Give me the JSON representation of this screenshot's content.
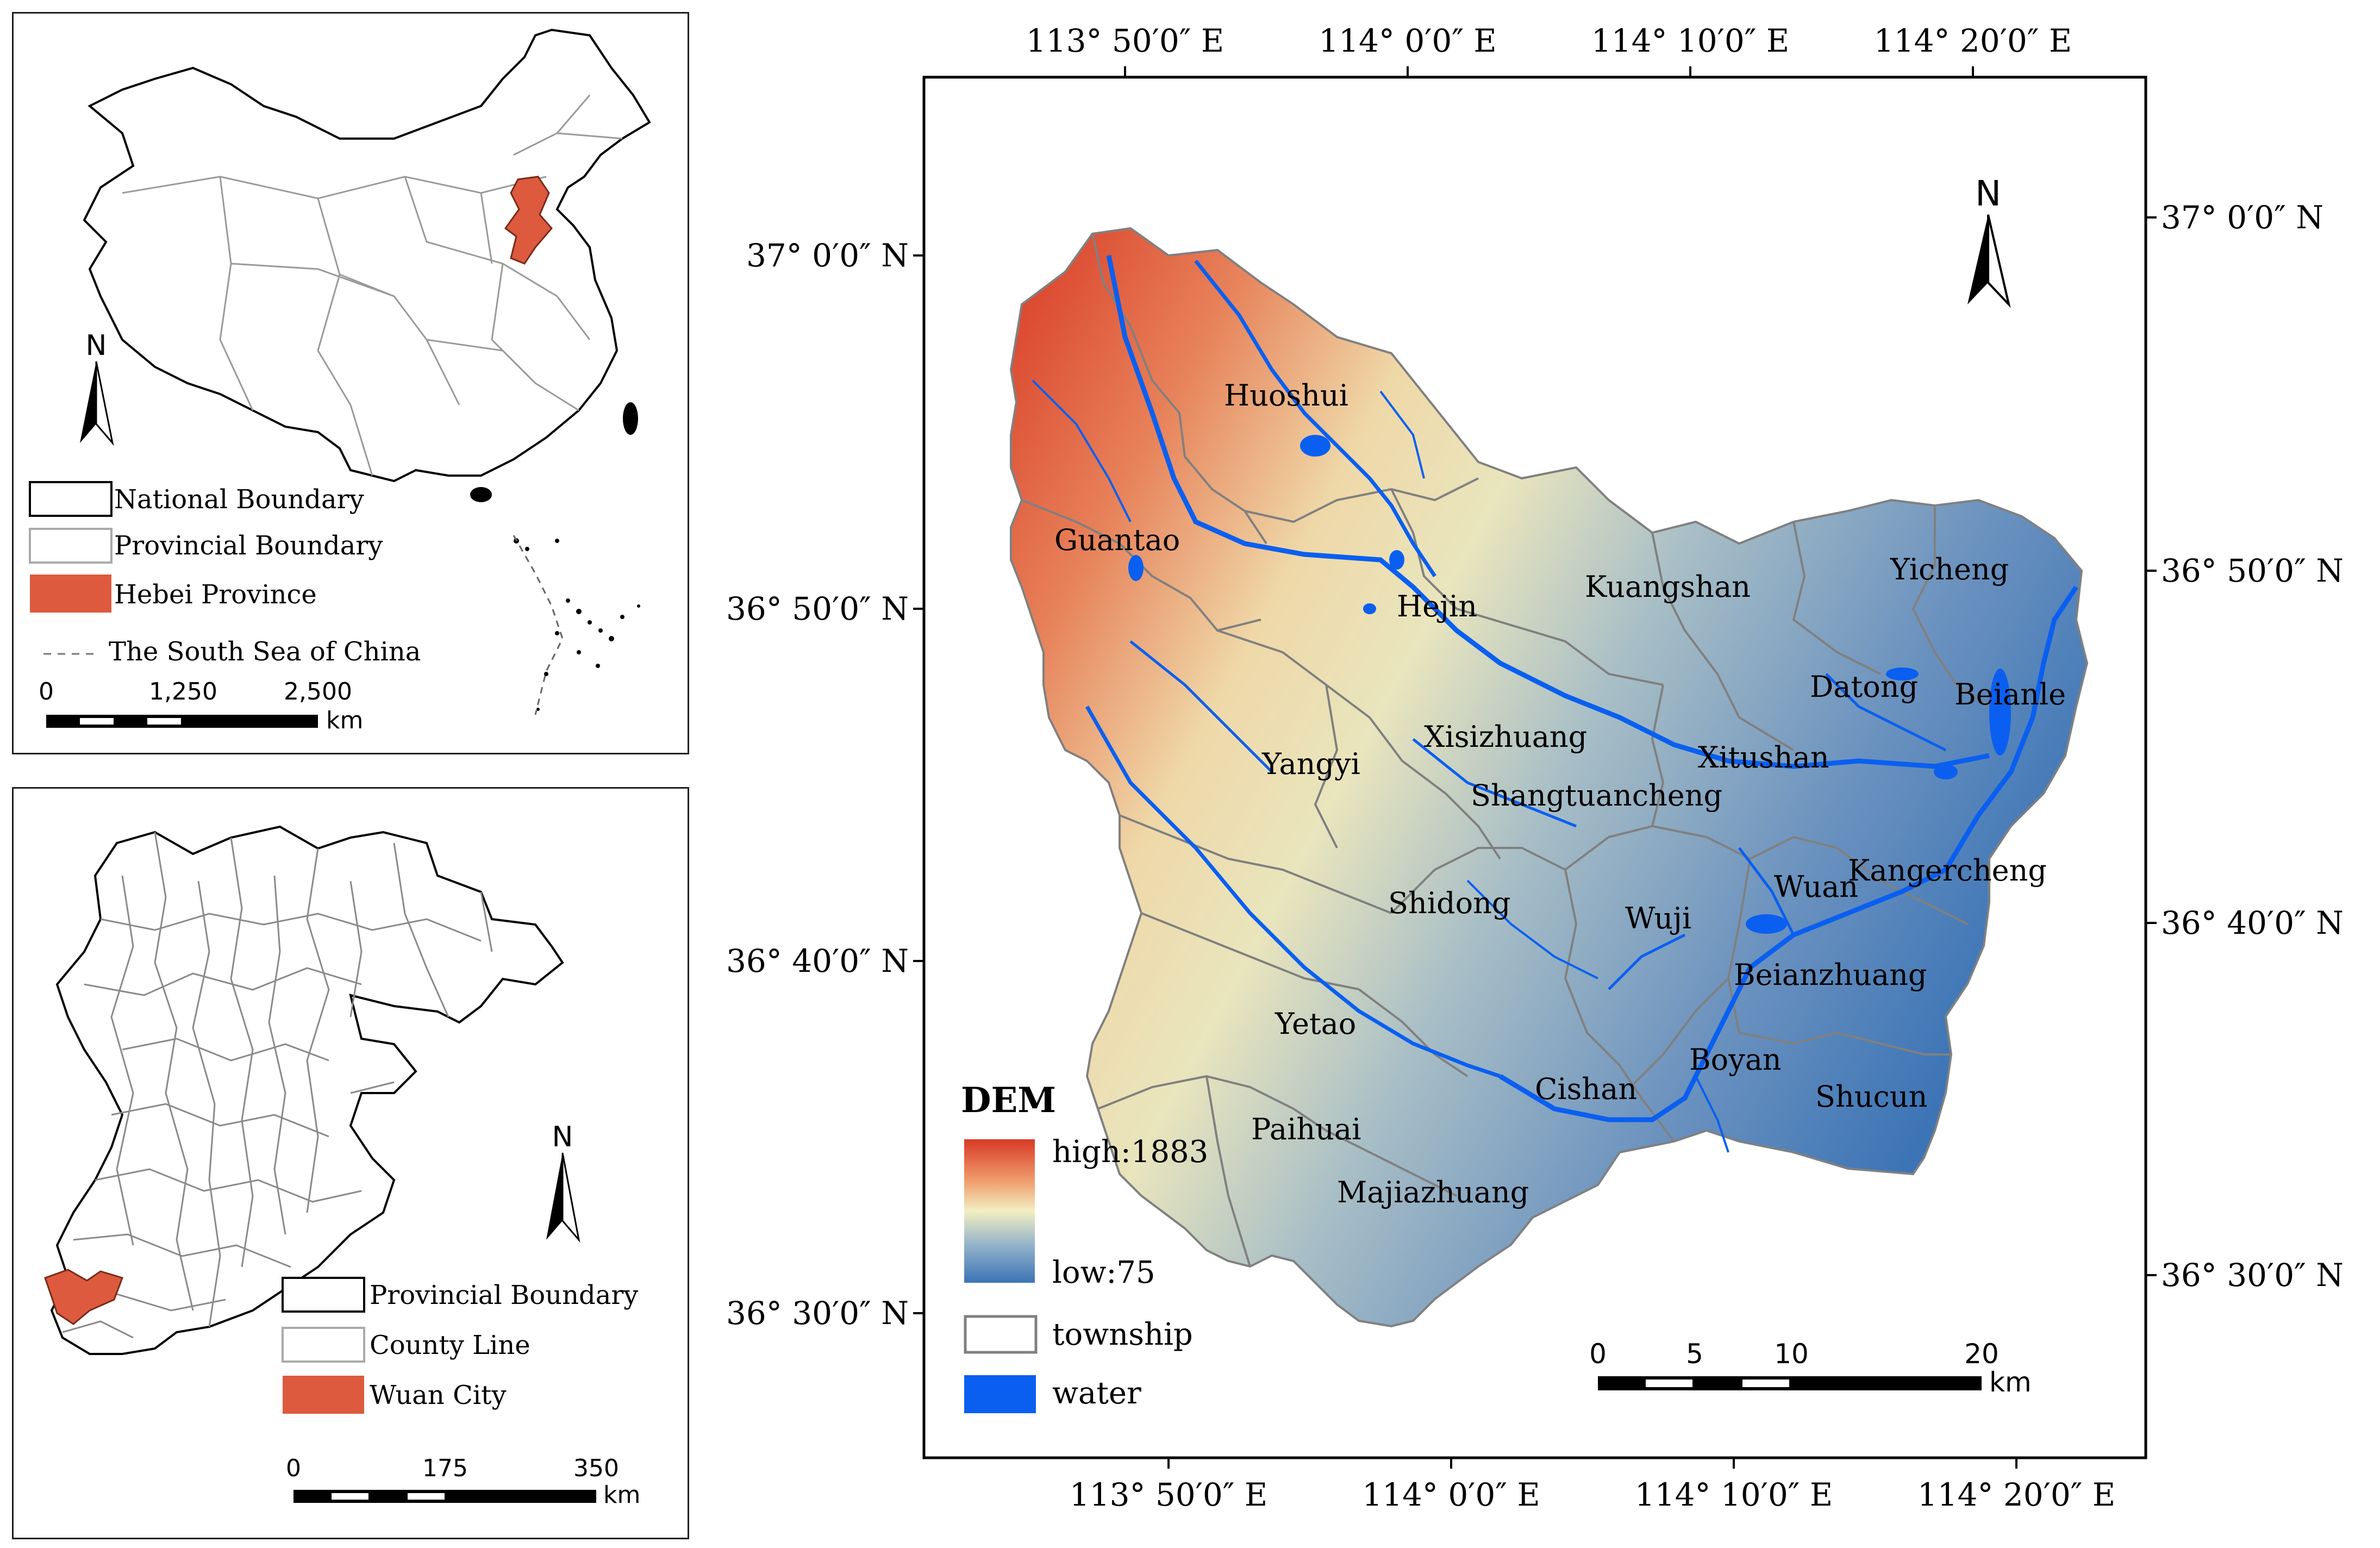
{
  "inset_china": {
    "north_label": "N",
    "legend": {
      "national_boundary": "National Boundary",
      "provincial_boundary": "Provincial Boundary",
      "hebei": "Hebei Province",
      "south_sea": "The South Sea of China"
    },
    "scale": {
      "t0": "0",
      "t1": "1,250",
      "t2": "2,500",
      "unit": "km"
    }
  },
  "inset_hebei": {
    "north_label": "N",
    "legend": {
      "provincial_boundary": "Provincial Boundary",
      "county_line": "County Line",
      "wuan_city": "Wuan City"
    },
    "scale": {
      "t0": "0",
      "t1": "175",
      "t2": "350",
      "unit": "km"
    }
  },
  "main_map": {
    "north_label": "N",
    "top_lon": [
      "113° 50′0″ E",
      "114° 0′0″ E",
      "114° 10′0″ E",
      "114° 20′0″ E"
    ],
    "bottom_lon": [
      "113° 50′0″ E",
      "114° 0′0″ E",
      "114° 10′0″ E",
      "114° 20′0″ E"
    ],
    "left_lat": [
      "37° 0′0″ N",
      "36° 50′0″ N",
      "36° 40′0″ N",
      "36° 30′0″ N"
    ],
    "right_lat": [
      "37° 0′0″ N",
      "36° 50′0″ N",
      "36° 40′0″ N",
      "36° 30′0″ N"
    ],
    "towns": {
      "huoshui": "Huoshui",
      "guantao": "Guantao",
      "hejin": "Hejin",
      "kuangshan": "Kuangshan",
      "yicheng": "Yicheng",
      "datong": "Datong",
      "beianle": "Beianle",
      "xisizhuang": "Xisizhuang",
      "xitushan": "Xitushan",
      "yangyi": "Yangyi",
      "shangtuancheng": "Shangtuancheng",
      "kangercheng": "Kangercheng",
      "wuan": "Wuan",
      "shidong": "Shidong",
      "wuji": "Wuji",
      "beianzhuang": "Beianzhuang",
      "yetao": "Yetao",
      "boyan": "Boyan",
      "cishan": "Cishan",
      "shucun": "Shucun",
      "paihuai": "Paihuai",
      "majiazhuang": "Majiazhuang"
    },
    "legend": {
      "title": "DEM",
      "high": "high:1883",
      "low": "low:75",
      "township": "township",
      "water": "water"
    },
    "scale": {
      "t0": "0",
      "t1": "5",
      "t2": "10",
      "t3": "20",
      "unit": "km"
    }
  },
  "colors": {
    "hebei_fill": "#dd5a3e",
    "water": "#0a5ff0",
    "dem_high": "#d93a26",
    "dem_mid": "#f2efc2",
    "dem_low": "#3c74b6",
    "township_line": "#808080"
  }
}
